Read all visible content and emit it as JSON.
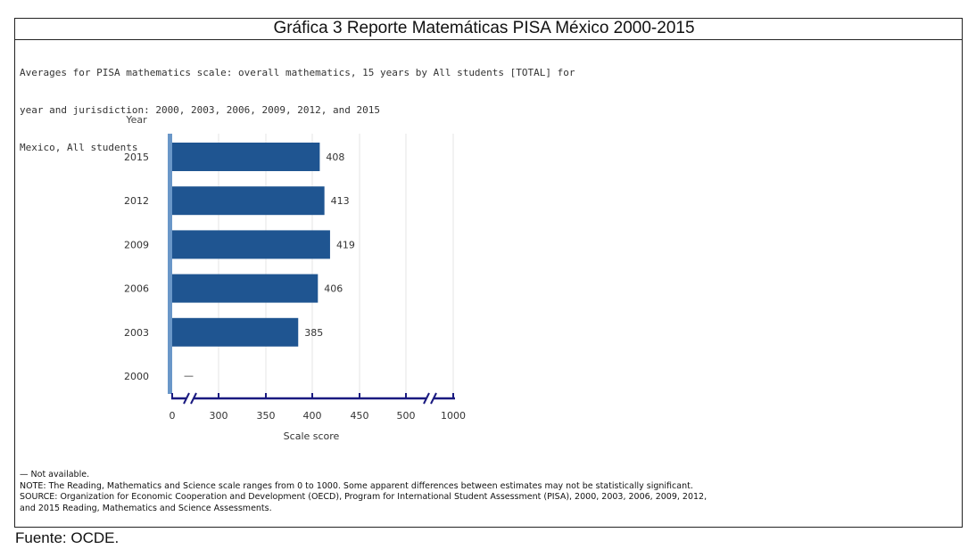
{
  "main_title": "Gráfica 3 Reporte Matemáticas PISA México 2000-2015",
  "subtitle_lines": [
    "Averages for PISA mathematics scale: overall mathematics, 15 years by All students [TOTAL] for",
    "year and jurisdiction: 2000, 2003, 2006, 2009, 2012, and 2015",
    "Mexico, All students"
  ],
  "footnotes": [
    "— Not available.",
    "NOTE:  The Reading, Mathematics and Science scale ranges from 0 to 1000. Some apparent differences between estimates may not be statistically significant.",
    "SOURCE: Organization for Economic Cooperation and Development (OECD), Program for International Student Assessment (PISA), 2000, 2003, 2006, 2009, 2012,",
    "and 2015 Reading, Mathematics and Science Assessments."
  ],
  "source": "Fuente: OCDE.",
  "chart_data": {
    "type": "bar",
    "orientation": "horizontal",
    "title": "Gráfica 3 Reporte Matemáticas PISA México 2000-2015",
    "ylabel": "Year",
    "xlabel": "Scale score",
    "categories": [
      "2015",
      "2012",
      "2009",
      "2006",
      "2003",
      "2000"
    ],
    "values": [
      408,
      413,
      419,
      406,
      385,
      null
    ],
    "value_labels": [
      "408",
      "413",
      "419",
      "406",
      "385",
      "—"
    ],
    "x_ticks": [
      "0",
      "300",
      "350",
      "400",
      "450",
      "500",
      "1000"
    ],
    "x_tick_values": [
      0,
      300,
      350,
      400,
      450,
      500,
      1000
    ],
    "axis_break": true,
    "grid": true,
    "bar_color": "#1f5591",
    "baseline_color": "#6a97c8",
    "axis_color": "#1a1a80"
  }
}
